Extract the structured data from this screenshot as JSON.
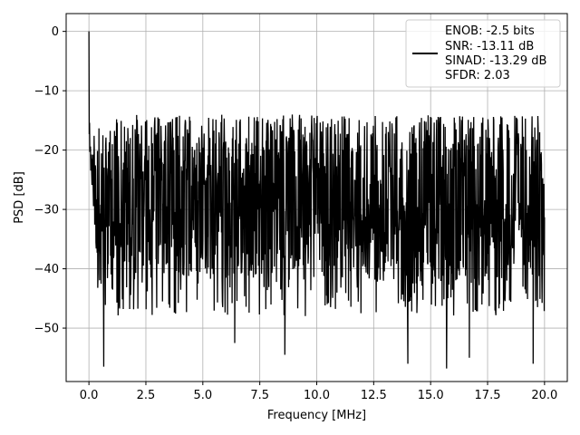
{
  "chart_data": {
    "type": "line",
    "xlabel": "Frequency [MHz]",
    "ylabel": "PSD [dB]",
    "xlim": [
      -1.0,
      21.0
    ],
    "ylim": [
      -59.0,
      3.0
    ],
    "x_ticks": [
      0.0,
      2.5,
      5.0,
      7.5,
      10.0,
      12.5,
      15.0,
      17.5,
      20.0
    ],
    "x_tick_labels": [
      "0.0",
      "2.5",
      "5.0",
      "7.5",
      "10.0",
      "12.5",
      "15.0",
      "17.5",
      "20.0"
    ],
    "y_ticks": [
      0,
      -10,
      -20,
      -30,
      -40,
      -50
    ],
    "y_tick_labels": [
      "0",
      "−10",
      "−20",
      "−30",
      "−40",
      "−50"
    ],
    "grid": true,
    "legend_position": "top-right",
    "series": [
      {
        "color": "#000000",
        "x_range": [
          0.0,
          20.0
        ],
        "points_count": 1500,
        "peak": {
          "x": 0.0,
          "y": 0.0
        },
        "upper_envelope_approx": -20,
        "median_level_approx": -28,
        "lower_envelope_approx": -42,
        "notable_dips": [
          {
            "x": 0.65,
            "y": -56.5
          },
          {
            "x": 6.4,
            "y": -52.5
          },
          {
            "x": 8.6,
            "y": -54.5
          },
          {
            "x": 14.0,
            "y": -56.0
          },
          {
            "x": 15.7,
            "y": -56.8
          },
          {
            "x": 16.7,
            "y": -55.0
          },
          {
            "x": 19.5,
            "y": -56.0
          }
        ]
      }
    ],
    "legend_entry": [
      "ENOB: -2.5 bits",
      "SNR: -13.11 dB",
      "SINAD: -13.29 dB",
      "SFDR: 2.03"
    ]
  },
  "legend": {
    "lines": [
      "ENOB: -2.5 bits",
      "SNR: -13.11 dB",
      "SINAD: -13.29 dB",
      "SFDR: 2.03"
    ]
  }
}
